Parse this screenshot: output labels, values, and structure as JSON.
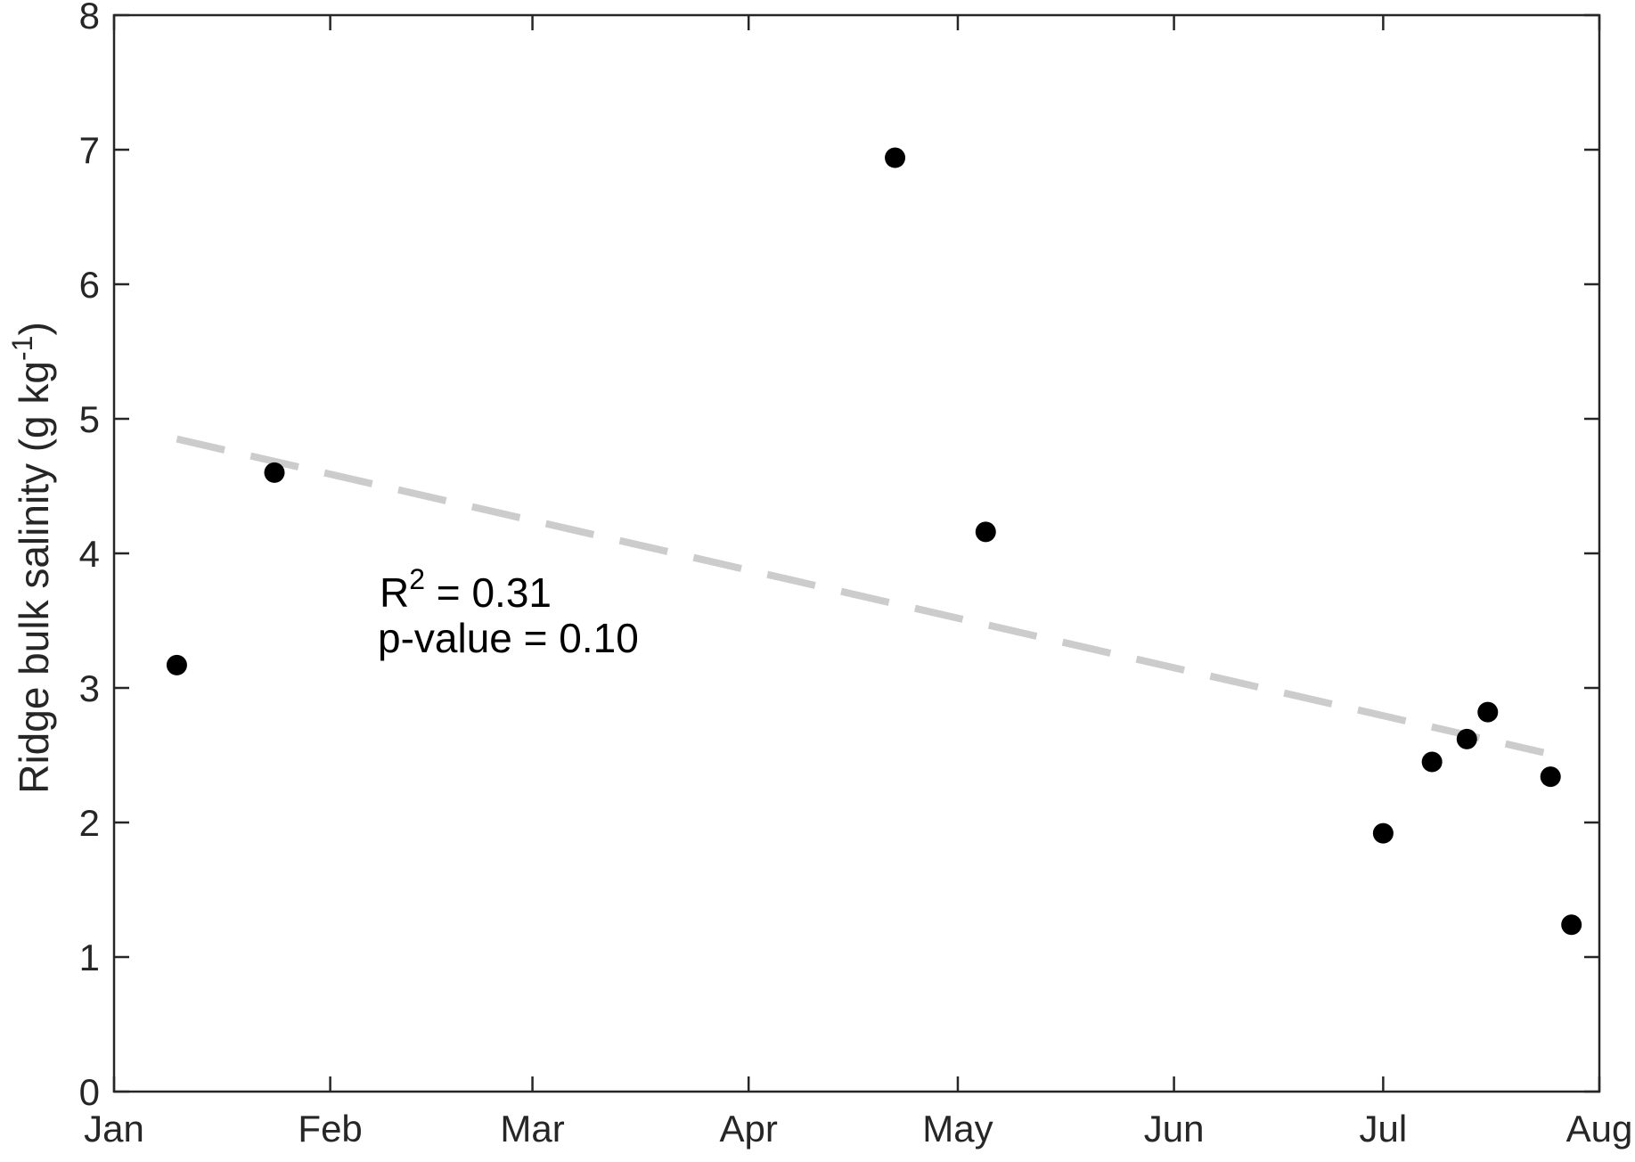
{
  "chart_data": {
    "type": "scatter",
    "title": "",
    "xlabel": "",
    "ylabel": "Ridge bulk salinity (g kg",
    "ylabel_superscript": "-1",
    "ylabel_close": ")",
    "x_ticks": [
      "Jan",
      "Feb",
      "Mar",
      "Apr",
      "May",
      "Jun",
      "Jul",
      "Aug"
    ],
    "x_tick_dates": [
      "2020-01-01",
      "2020-02-01",
      "2020-03-01",
      "2020-04-01",
      "2020-05-01",
      "2020-06-01",
      "2020-07-01",
      "2020-08-01"
    ],
    "xlim": [
      "2020-01-01",
      "2020-08-01"
    ],
    "ylim": [
      0,
      8
    ],
    "y_ticks": [
      "0",
      "1",
      "2",
      "3",
      "4",
      "5",
      "6",
      "7",
      "8"
    ],
    "grid": false,
    "points": [
      {
        "x": "2020-01-10",
        "y": 3.17
      },
      {
        "x": "2020-01-24",
        "y": 4.6
      },
      {
        "x": "2020-04-22",
        "y": 6.94
      },
      {
        "x": "2020-05-05",
        "y": 4.16
      },
      {
        "x": "2020-07-01",
        "y": 1.92
      },
      {
        "x": "2020-07-08",
        "y": 2.45
      },
      {
        "x": "2020-07-13",
        "y": 2.62
      },
      {
        "x": "2020-07-16",
        "y": 2.82
      },
      {
        "x": "2020-07-25",
        "y": 2.34
      },
      {
        "x": "2020-07-28",
        "y": 1.24
      }
    ],
    "marker_color": "#000000",
    "trendline": {
      "style": "dashed",
      "color": "#cccccc",
      "start": {
        "x": "2020-01-10",
        "y": 4.85
      },
      "end": {
        "x": "2020-07-24",
        "y": 2.52
      }
    },
    "annotations": {
      "r2_label": "R",
      "r2_superscript": "2",
      "r2_value": " = 0.31",
      "p_value": "p-value = 0.10"
    }
  }
}
